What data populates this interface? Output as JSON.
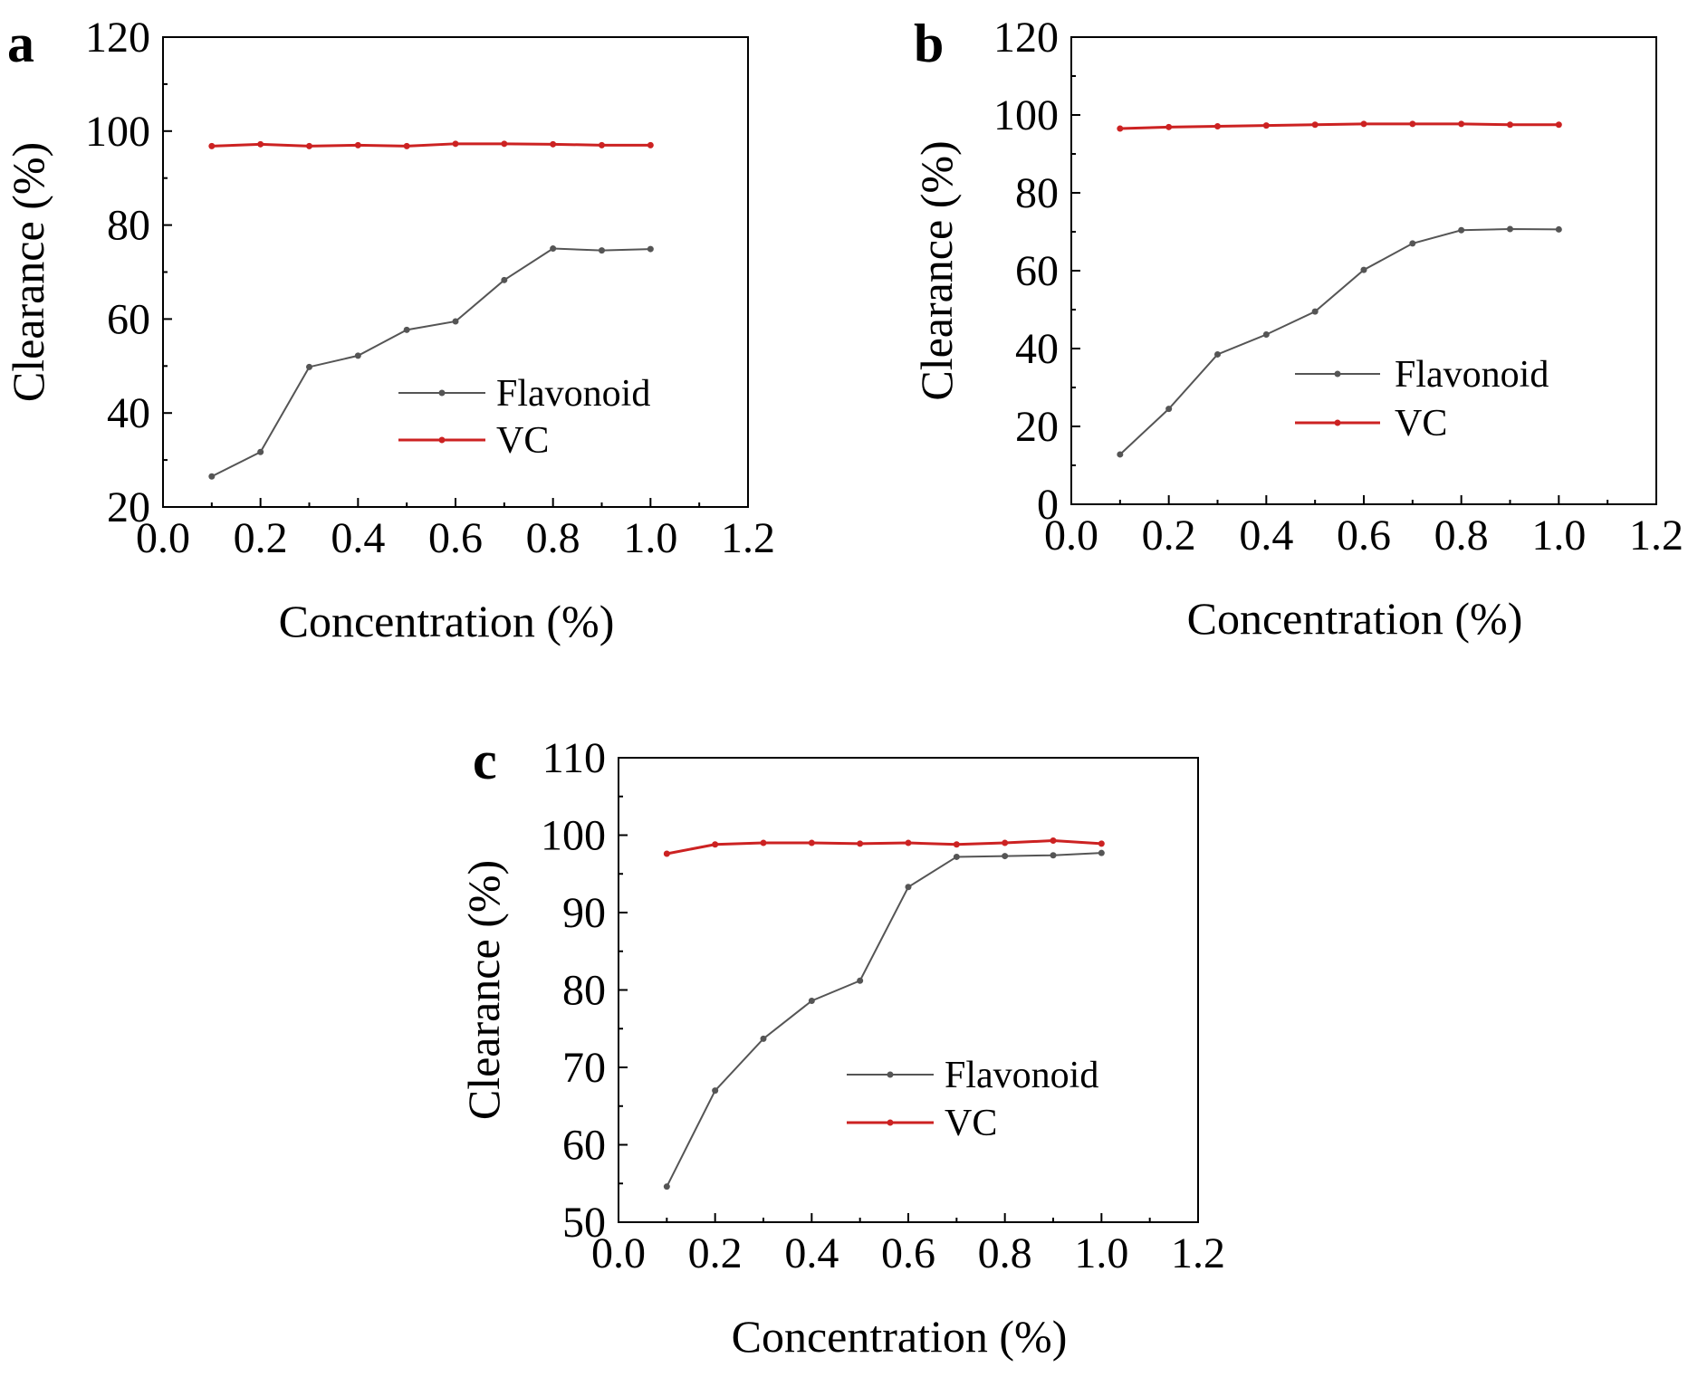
{
  "chart_data": [
    {
      "type": "line",
      "panel_label": "a",
      "xlabel": "Concentration (%)",
      "ylabel": "Clearance (%)",
      "xlim": [
        0.0,
        1.2
      ],
      "ylim": [
        20,
        120
      ],
      "xticks": [
        "0.0",
        "0.2",
        "0.4",
        "0.6",
        "0.8",
        "1.0",
        "1.2"
      ],
      "yticks": [
        "20",
        "40",
        "60",
        "80",
        "100",
        "120"
      ],
      "x": [
        0.1,
        0.2,
        0.3,
        0.4,
        0.5,
        0.6,
        0.7,
        0.8,
        0.9,
        1.0
      ],
      "series": [
        {
          "name": "Flavonoid",
          "color": "#555555",
          "values": [
            26.5,
            31.7,
            49.8,
            52.2,
            57.7,
            59.5,
            68.3,
            75.0,
            74.6,
            74.9
          ]
        },
        {
          "name": "VC",
          "color": "#cc2222",
          "values": [
            96.8,
            97.2,
            96.8,
            97.0,
            96.8,
            97.3,
            97.3,
            97.2,
            97.0,
            97.0
          ]
        }
      ],
      "legend_position": "lower-right"
    },
    {
      "type": "line",
      "panel_label": "b",
      "xlabel": "Concentration (%)",
      "ylabel": "Clearance (%)",
      "xlim": [
        0.0,
        1.2
      ],
      "ylim": [
        0,
        120
      ],
      "xticks": [
        "0.0",
        "0.2",
        "0.4",
        "0.6",
        "0.8",
        "1.0",
        "1.2"
      ],
      "yticks": [
        "0",
        "20",
        "40",
        "60",
        "80",
        "100",
        "120"
      ],
      "x": [
        0.1,
        0.2,
        0.3,
        0.4,
        0.5,
        0.6,
        0.7,
        0.8,
        0.9,
        1.0
      ],
      "series": [
        {
          "name": "Flavonoid",
          "color": "#555555",
          "values": [
            12.8,
            24.5,
            38.5,
            43.6,
            49.5,
            60.2,
            67.0,
            70.4,
            70.7,
            70.6
          ]
        },
        {
          "name": "VC",
          "color": "#cc2222",
          "values": [
            96.5,
            96.9,
            97.1,
            97.3,
            97.5,
            97.7,
            97.7,
            97.7,
            97.5,
            97.5
          ]
        }
      ],
      "legend_position": "lower-right"
    },
    {
      "type": "line",
      "panel_label": "c",
      "xlabel": "Concentration (%)",
      "ylabel": "Clearance (%)",
      "xlim": [
        0.0,
        1.2
      ],
      "ylim": [
        50,
        110
      ],
      "xticks": [
        "0.0",
        "0.2",
        "0.4",
        "0.6",
        "0.8",
        "1.0",
        "1.2"
      ],
      "yticks": [
        "50",
        "60",
        "70",
        "80",
        "90",
        "100",
        "110"
      ],
      "x": [
        0.1,
        0.2,
        0.3,
        0.4,
        0.5,
        0.6,
        0.7,
        0.8,
        0.9,
        1.0
      ],
      "series": [
        {
          "name": "Flavonoid",
          "color": "#555555",
          "values": [
            54.6,
            67.0,
            73.7,
            78.6,
            81.2,
            93.3,
            97.2,
            97.3,
            97.4,
            97.7
          ]
        },
        {
          "name": "VC",
          "color": "#cc2222",
          "values": [
            97.6,
            98.8,
            99.0,
            99.0,
            98.9,
            99.0,
            98.8,
            99.0,
            99.3,
            98.9
          ]
        }
      ],
      "legend_position": "lower-right"
    }
  ]
}
